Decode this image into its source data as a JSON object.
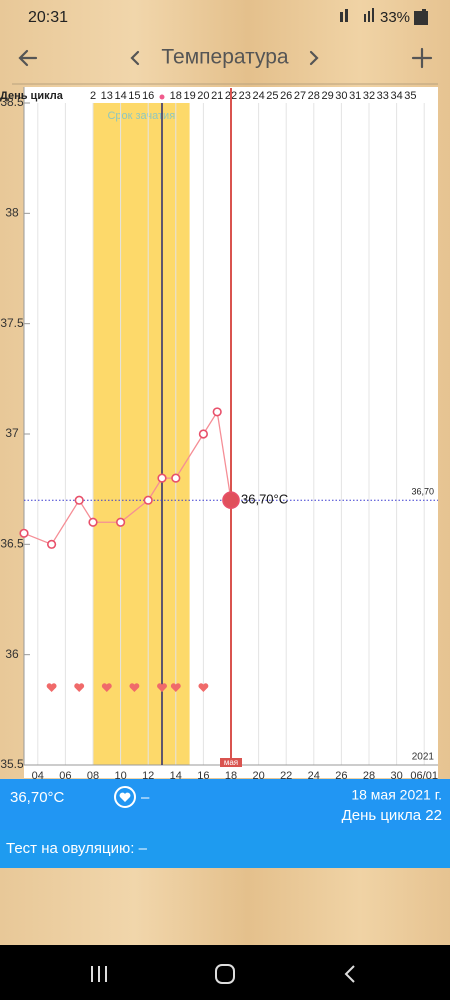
{
  "status": {
    "time": "20:31",
    "battery": "33%"
  },
  "header": {
    "title": "Температура"
  },
  "chart_data": {
    "type": "line",
    "cycle_days": {
      "label": "День цикла",
      "labels": [
        "2",
        "13",
        "14",
        "15",
        "16",
        null,
        "18",
        "19",
        "20",
        "21",
        "22",
        "23",
        "24",
        "25",
        "26",
        "27",
        "28",
        "29",
        "30",
        "31",
        "32",
        "33",
        "34",
        "35"
      ],
      "x": [
        8,
        9,
        10,
        11,
        12,
        13,
        14,
        15,
        16,
        17,
        18,
        19,
        20,
        21,
        22,
        23,
        24,
        25,
        26,
        27,
        28,
        29,
        30,
        31
      ]
    },
    "fertile_window": {
      "label": "Срок зачатия",
      "start": 8,
      "end": 15
    },
    "ovulation_day": 13,
    "current_day": 18,
    "current_day_label": "мая",
    "year_label": "2021",
    "series": [
      {
        "name": "Температура",
        "color": "#f58e96",
        "x": [
          3,
          5,
          7,
          8,
          10,
          12,
          13,
          14,
          16,
          17,
          18
        ],
        "values": [
          36.55,
          36.5,
          36.7,
          36.6,
          36.6,
          36.7,
          36.8,
          36.8,
          37.0,
          37.1,
          36.7
        ]
      }
    ],
    "heart_days": [
      5,
      7,
      9,
      11,
      13,
      14,
      16
    ],
    "reference_line": {
      "value": 36.7,
      "label": "36,70",
      "point_label": "36,70°C"
    },
    "xlim": [
      3,
      33
    ],
    "xticks": [
      {
        "value": 4,
        "label": "04"
      },
      {
        "value": 6,
        "label": "06"
      },
      {
        "value": 8,
        "label": "08"
      },
      {
        "value": 10,
        "label": "10"
      },
      12,
      14,
      16,
      18,
      20,
      22,
      24,
      26,
      28,
      30,
      {
        "value": 32,
        "label": "06/01"
      }
    ],
    "ylim": [
      35.5,
      38.5
    ],
    "yticks": [
      35.5,
      36,
      36.5,
      37,
      37.5,
      38,
      38.5
    ],
    "grid": true
  },
  "info": {
    "temperature": "36,70°C",
    "heart_value": "–",
    "date": "18 мая 2021 г.",
    "cycle_day": "День цикла 22",
    "ovulation_test": "Тест на овуляцию: –"
  }
}
